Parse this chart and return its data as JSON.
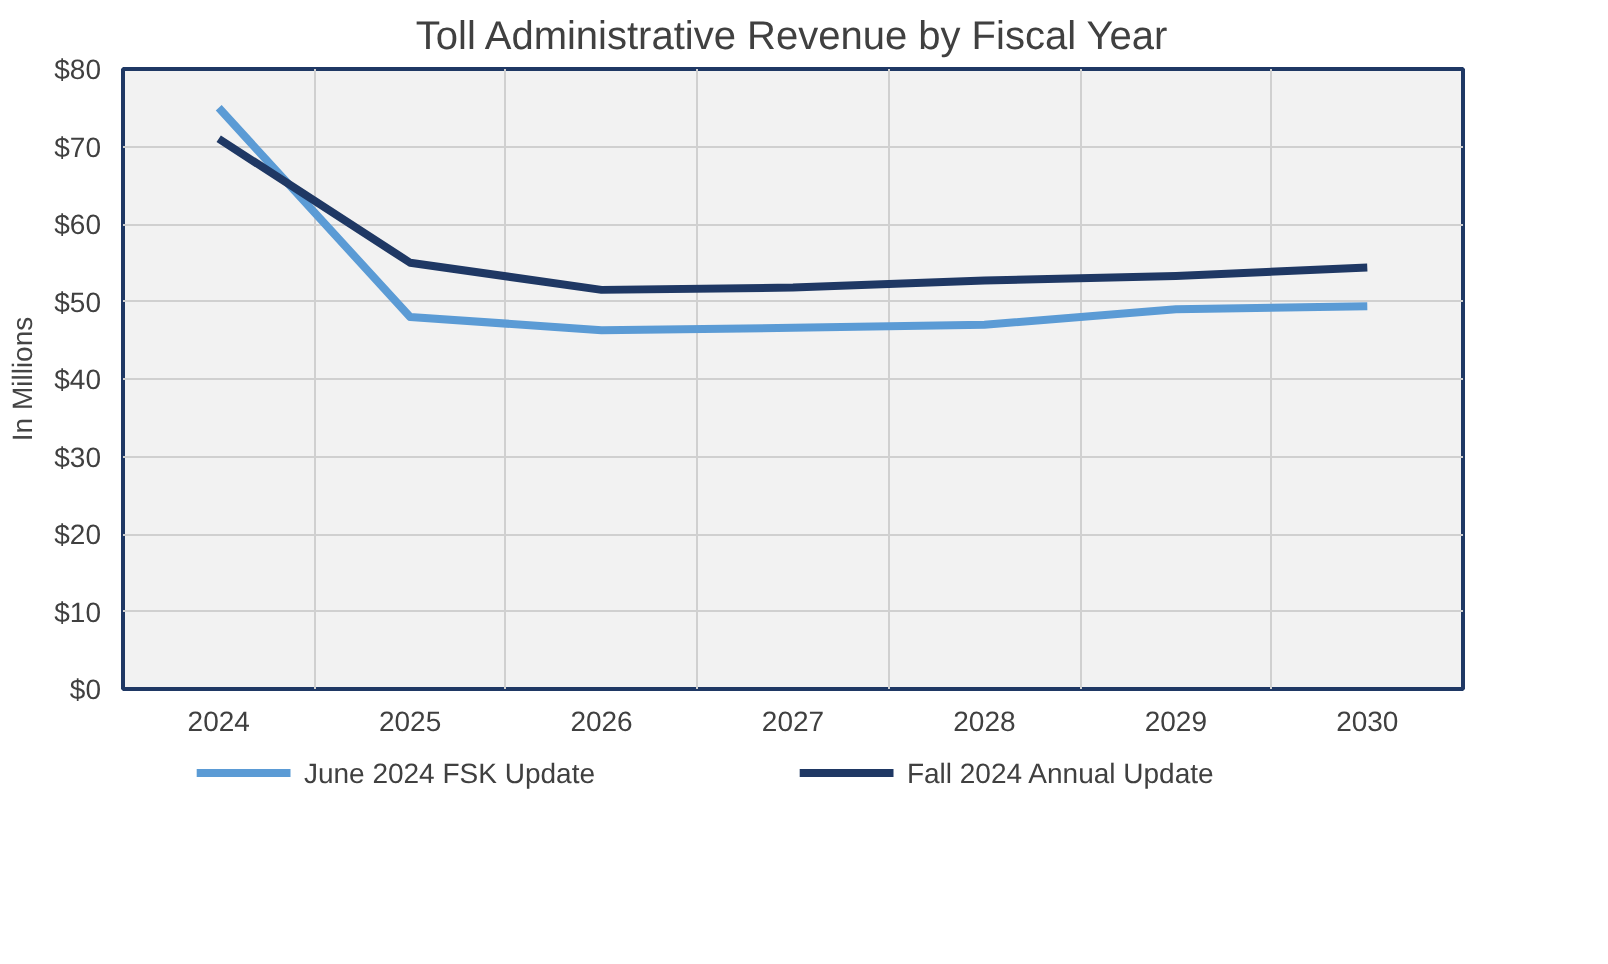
{
  "chart_data": {
    "type": "line",
    "title": "Toll Administrative Revenue by Fiscal Year",
    "ylabel": "In Millions",
    "categories": [
      "2024",
      "2025",
      "2026",
      "2027",
      "2028",
      "2029",
      "2030"
    ],
    "series": [
      {
        "name": "June 2024 FSK Update",
        "color": "#5b9bd5",
        "values": [
          75,
          48,
          46.3,
          46.6,
          47,
          49,
          49.4
        ]
      },
      {
        "name": "Fall 2024 Annual Update",
        "color": "#1f3864",
        "values": [
          71,
          55,
          51.5,
          51.8,
          52.7,
          53.3,
          54.4
        ]
      }
    ],
    "ylim": [
      0,
      80
    ],
    "yticks": [
      {
        "value": 0,
        "label": "$0"
      },
      {
        "value": 10,
        "label": "$10"
      },
      {
        "value": 20,
        "label": "$20"
      },
      {
        "value": 30,
        "label": "$30"
      },
      {
        "value": 40,
        "label": "$40"
      },
      {
        "value": 50,
        "label": "$50"
      },
      {
        "value": 60,
        "label": "$60"
      },
      {
        "value": 70,
        "label": "$70"
      },
      {
        "value": 80,
        "label": "$80"
      }
    ],
    "grid": true,
    "legend": "bottom",
    "marker": "none",
    "line_style": "solid"
  }
}
